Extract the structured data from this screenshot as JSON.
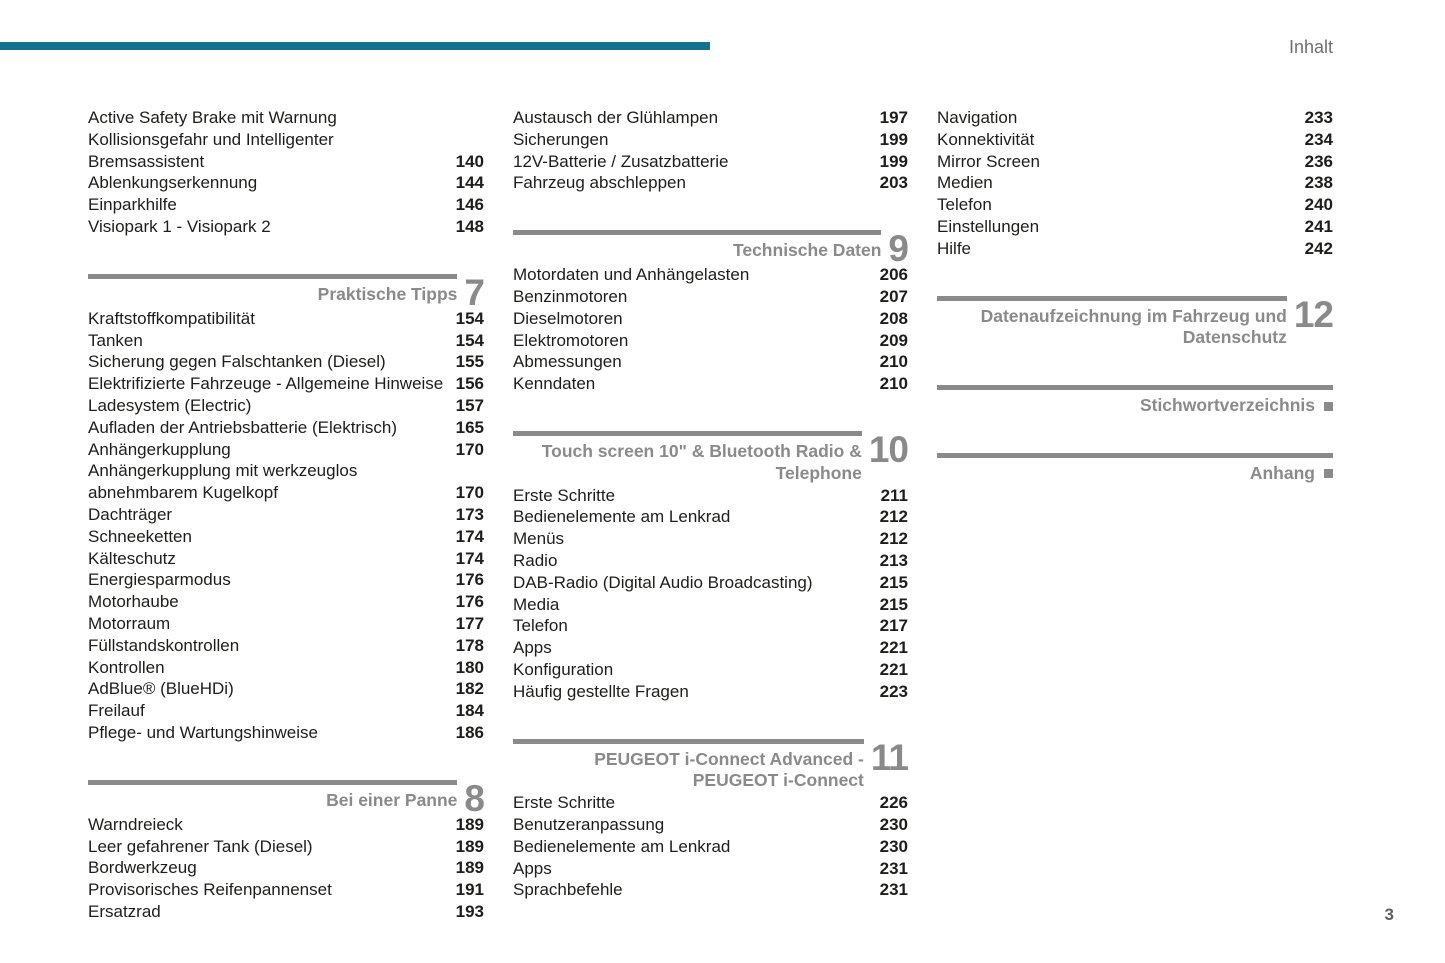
{
  "page": {
    "header_label": "Inhalt",
    "page_number": "3",
    "accent_color": "#16708F",
    "heading_gray": "#8a8a8a"
  },
  "columns": [
    {
      "blocks": [
        {
          "type": "entries",
          "items": [
            {
              "label": "Active Safety Brake mit Warnung Kollisionsgefahr und Intelligenter Bremsassistent",
              "page": "140"
            },
            {
              "label": "Ablenkungserkennung",
              "page": "144"
            },
            {
              "label": "Einparkhilfe",
              "page": "146"
            },
            {
              "label": "Visiopark 1 - Visiopark 2",
              "page": "148"
            }
          ]
        },
        {
          "type": "section",
          "title": "Praktische Tipps",
          "number": "7"
        },
        {
          "type": "entries",
          "items": [
            {
              "label": "Kraftstoffkompatibilität",
              "page": "154"
            },
            {
              "label": "Tanken",
              "page": "154"
            },
            {
              "label": "Sicherung gegen Falschtanken (Diesel)",
              "page": "155"
            },
            {
              "label": "Elektrifizierte Fahrzeuge - Allgemeine Hinweise",
              "page": "156"
            },
            {
              "label": "Ladesystem (Electric)",
              "page": "157"
            },
            {
              "label": "Aufladen der Antriebsbatterie (Elektrisch)",
              "page": "165"
            },
            {
              "label": "Anhängerkupplung",
              "page": "170"
            },
            {
              "label": "Anhängerkupplung mit werkzeuglos abnehmbarem Kugelkopf",
              "page": "170"
            },
            {
              "label": "Dachträger",
              "page": "173"
            },
            {
              "label": "Schneeketten",
              "page": "174"
            },
            {
              "label": "Kälteschutz",
              "page": "174"
            },
            {
              "label": "Energiesparmodus",
              "page": "176"
            },
            {
              "label": "Motorhaube",
              "page": "176"
            },
            {
              "label": "Motorraum",
              "page": "177"
            },
            {
              "label": "Füllstandskontrollen",
              "page": "178"
            },
            {
              "label": "Kontrollen",
              "page": "180"
            },
            {
              "label": "AdBlue® (BlueHDi)",
              "page": "182"
            },
            {
              "label": "Freilauf",
              "page": "184"
            },
            {
              "label": "Pflege- und Wartungshinweise",
              "page": "186"
            }
          ]
        },
        {
          "type": "section",
          "title": "Bei einer Panne",
          "number": "8"
        },
        {
          "type": "entries",
          "items": [
            {
              "label": "Warndreieck",
              "page": "189"
            },
            {
              "label": "Leer gefahrener Tank (Diesel)",
              "page": "189"
            },
            {
              "label": "Bordwerkzeug",
              "page": "189"
            },
            {
              "label": "Provisorisches Reifenpannenset",
              "page": "191"
            },
            {
              "label": "Ersatzrad",
              "page": "193"
            }
          ]
        }
      ]
    },
    {
      "blocks": [
        {
          "type": "entries",
          "items": [
            {
              "label": "Austausch der Glühlampen",
              "page": "197"
            },
            {
              "label": "Sicherungen",
              "page": "199"
            },
            {
              "label": "12V-Batterie / Zusatzbatterie",
              "page": "199"
            },
            {
              "label": "Fahrzeug abschleppen",
              "page": "203"
            }
          ]
        },
        {
          "type": "section",
          "title": "Technische Daten",
          "number": "9"
        },
        {
          "type": "entries",
          "items": [
            {
              "label": "Motordaten und Anhängelasten",
              "page": "206"
            },
            {
              "label": "Benzinmotoren",
              "page": "207"
            },
            {
              "label": "Dieselmotoren",
              "page": "208"
            },
            {
              "label": "Elektromotoren",
              "page": "209"
            },
            {
              "label": "Abmessungen",
              "page": "210"
            },
            {
              "label": "Kenndaten",
              "page": "210"
            }
          ]
        },
        {
          "type": "section",
          "title": "Touch screen 10\" & Bluetooth Radio & Telephone",
          "number": "10"
        },
        {
          "type": "entries",
          "items": [
            {
              "label": "Erste Schritte",
              "page": "211"
            },
            {
              "label": "Bedienelemente am Lenkrad",
              "page": "212"
            },
            {
              "label": "Menüs",
              "page": "212"
            },
            {
              "label": "Radio",
              "page": "213"
            },
            {
              "label": "DAB-Radio (Digital Audio Broadcasting)",
              "page": "215"
            },
            {
              "label": "Media",
              "page": "215"
            },
            {
              "label": "Telefon",
              "page": "217"
            },
            {
              "label": "Apps",
              "page": "221"
            },
            {
              "label": "Konfiguration",
              "page": "221"
            },
            {
              "label": "Häufig gestellte Fragen",
              "page": "223"
            }
          ]
        },
        {
          "type": "section",
          "title": "PEUGEOT i-Connect Advanced - PEUGEOT i-Connect",
          "number": "11"
        },
        {
          "type": "entries",
          "items": [
            {
              "label": "Erste Schritte",
              "page": "226"
            },
            {
              "label": "Benutzeranpassung",
              "page": "230"
            },
            {
              "label": "Bedienelemente am Lenkrad",
              "page": "230"
            },
            {
              "label": "Apps",
              "page": "231"
            },
            {
              "label": "Sprachbefehle",
              "page": "231"
            }
          ]
        }
      ]
    },
    {
      "blocks": [
        {
          "type": "entries",
          "items": [
            {
              "label": "Navigation",
              "page": "233"
            },
            {
              "label": "Konnektivität",
              "page": "234"
            },
            {
              "label": "Mirror Screen",
              "page": "236"
            },
            {
              "label": "Medien",
              "page": "238"
            },
            {
              "label": "Telefon",
              "page": "240"
            },
            {
              "label": "Einstellungen",
              "page": "241"
            },
            {
              "label": "Hilfe",
              "page": "242"
            }
          ]
        },
        {
          "type": "section",
          "title": "Datenaufzeichnung im Fahrzeug und Datenschutz",
          "number": "12"
        },
        {
          "type": "section",
          "title": "Stichwortverzeichnis",
          "marker": true
        },
        {
          "type": "section",
          "title": "Anhang",
          "marker": true
        }
      ]
    }
  ]
}
